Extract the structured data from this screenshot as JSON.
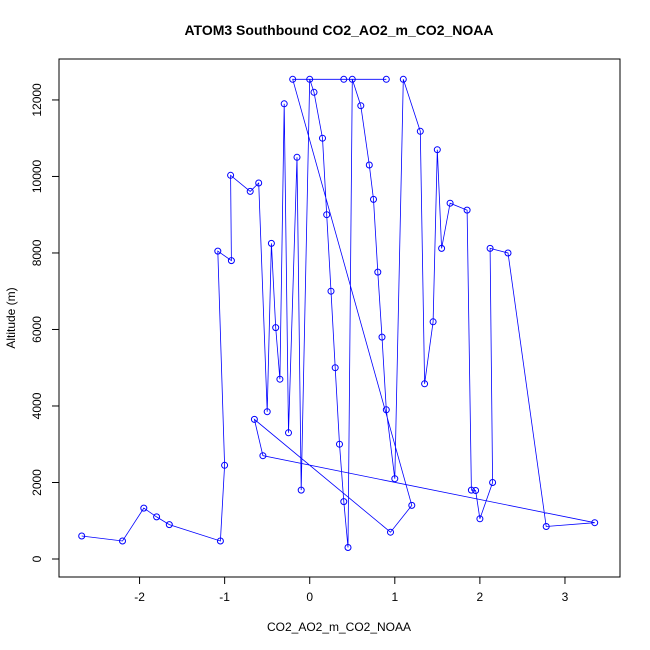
{
  "chart_data": {
    "type": "scatter",
    "title": "ATOM3 Southbound CO2_AO2_m_CO2_NOAA",
    "xlabel": "CO2_AO2_m_CO2_NOAA",
    "ylabel": "Altitude (m)",
    "xlim": [
      -2.7,
      3.4
    ],
    "ylim": [
      0,
      12600
    ],
    "xticks": [
      -2,
      -1,
      0,
      1,
      2,
      3
    ],
    "yticks": [
      0,
      2000,
      4000,
      6000,
      8000,
      10000,
      12000
    ],
    "grid": false,
    "legend": "none",
    "series": [
      {
        "points": [
          [
            -2.68,
            600
          ],
          [
            -2.2,
            470
          ],
          [
            -1.95,
            1330
          ],
          [
            -1.8,
            1100
          ],
          [
            -1.65,
            900
          ],
          [
            -1.05,
            470
          ],
          [
            -1.0,
            2450
          ],
          [
            -1.08,
            8050
          ],
          [
            -0.92,
            7800
          ],
          [
            -0.93,
            10030
          ],
          [
            -0.7,
            9610
          ],
          [
            -0.6,
            9830
          ],
          [
            -0.5,
            3850
          ],
          [
            -0.45,
            8250
          ],
          [
            -0.4,
            6050
          ],
          [
            -0.35,
            4700
          ],
          [
            -0.3,
            11900
          ],
          [
            -0.25,
            3300
          ],
          [
            -0.15,
            10500
          ],
          [
            -0.1,
            1800
          ],
          [
            0.0,
            12540
          ],
          [
            0.05,
            12200
          ],
          [
            0.15,
            11000
          ],
          [
            0.2,
            9000
          ],
          [
            0.25,
            7000
          ],
          [
            0.3,
            5000
          ],
          [
            0.35,
            3000
          ],
          [
            0.4,
            1500
          ],
          [
            0.45,
            300
          ],
          [
            0.5,
            12540
          ],
          [
            0.6,
            11850
          ],
          [
            0.7,
            10300
          ],
          [
            0.75,
            9400
          ],
          [
            0.8,
            7500
          ],
          [
            0.85,
            5800
          ],
          [
            0.9,
            3900
          ],
          [
            1.0,
            2100
          ],
          [
            1.1,
            12540
          ],
          [
            1.3,
            11180
          ],
          [
            1.35,
            4580
          ],
          [
            1.45,
            6200
          ],
          [
            1.5,
            10700
          ],
          [
            1.55,
            8120
          ],
          [
            1.65,
            9300
          ],
          [
            1.85,
            9120
          ],
          [
            1.9,
            1800
          ],
          [
            1.95,
            1790
          ],
          [
            2.0,
            1050
          ],
          [
            2.15,
            2000
          ],
          [
            2.12,
            8120
          ],
          [
            2.33,
            8000
          ],
          [
            2.78,
            850
          ],
          [
            3.35,
            950
          ],
          [
            -0.55,
            2700
          ],
          [
            -0.65,
            3650
          ],
          [
            0.95,
            700
          ],
          [
            1.2,
            1400
          ],
          [
            -0.2,
            12540
          ],
          [
            0.4,
            12540
          ],
          [
            0.9,
            12540
          ]
        ]
      }
    ]
  }
}
